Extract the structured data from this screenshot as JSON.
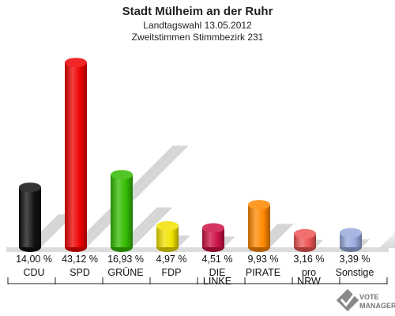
{
  "chart_data": {
    "type": "bar",
    "title": "Stadt Mülheim an der Ruhr",
    "subtitle_1": "Landtagswahl 13.05.2012",
    "subtitle_2": "Zweitstimmen Stimmbezirk 231",
    "categories": [
      [
        "CDU"
      ],
      [
        "SPD"
      ],
      [
        "GRÜNE"
      ],
      [
        "FDP"
      ],
      [
        "DIE",
        "LINKE"
      ],
      [
        "PIRATE"
      ],
      [
        "pro",
        "NRW"
      ],
      [
        "Sonstige"
      ]
    ],
    "values": [
      14.0,
      43.12,
      16.93,
      4.97,
      4.51,
      9.93,
      3.16,
      3.39
    ],
    "value_labels": [
      "14,00 %",
      "43,12 %",
      "16,93 %",
      "4,97 %",
      "4,51 %",
      "9,93 %",
      "3,16 %",
      "3,39 %"
    ],
    "colors": [
      "#111111",
      "#ee0000",
      "#33bb00",
      "#f2e200",
      "#cc1144",
      "#ff8800",
      "#ee5555",
      "#99aadd"
    ],
    "ylim": [
      0,
      45
    ],
    "grid": false,
    "legend": "none"
  },
  "logo": {
    "line1": "VOTE",
    "line2": "MANAGER"
  }
}
